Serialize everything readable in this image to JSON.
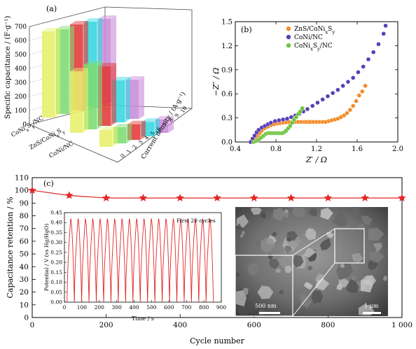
{
  "panels": {
    "a": "(a)",
    "b": "(b)",
    "c": "(c)"
  },
  "chart_data": [
    {
      "type": "bar",
      "panel": "(a)",
      "projection": "3d",
      "title": "",
      "ylabel": "Specific capacitance / (F·g⁻¹)",
      "xlabel": "Current density / (A·g⁻¹)",
      "ylim": [
        0,
        700
      ],
      "yticks": [
        0,
        100,
        200,
        300,
        400,
        500,
        600,
        700
      ],
      "categories": [
        "1",
        "2",
        "3",
        "4",
        "5",
        "6",
        "7",
        "8",
        "9",
        "10"
      ],
      "depth_labels": [
        "CoNi_xS_y/NC",
        "ZnS/CoNi_xS_y",
        "CoNi/NC"
      ],
      "series": [
        {
          "name": "CoNi_xS_y/NC",
          "values": [
            615,
            606,
            615,
            610,
            605,
            0,
            0,
            0,
            0,
            0
          ],
          "colors": [
            "#e8f06a",
            "#7ddc72",
            "#e23a3a",
            "#35d8e0",
            "#c98bd9"
          ]
        },
        {
          "name": "ZnS/CoNi_xS_y",
          "values": [
            440,
            465,
            425,
            300,
            280,
            0,
            0,
            0,
            0,
            0
          ],
          "colors": [
            "#e8f06a",
            "#7ddc72",
            "#e23a3a",
            "#35d8e0",
            "#c98bd9"
          ]
        },
        {
          "name": "CoNi/NC",
          "values": [
            75,
            72,
            70,
            65,
            60,
            0,
            0,
            0,
            0,
            0
          ],
          "colors": [
            "#e8f06a",
            "#7ddc72",
            "#e23a3a",
            "#35d8e0",
            "#c98bd9"
          ]
        }
      ],
      "depth_tick_labels": [
        "CoNi_xS_y/NC",
        "ZnS/CoNi_xS_y",
        "CoNi/NC"
      ],
      "x_tick_labels": [
        "0",
        "1",
        "2",
        "3",
        "4",
        "5",
        "6",
        "7",
        "8",
        "9",
        "10"
      ]
    },
    {
      "type": "scatter",
      "panel": "(b)",
      "title": "",
      "xlabel": "Z′ / Ω",
      "ylabel": "−Z″ / Ω",
      "xlim": [
        0.4,
        2.0
      ],
      "ylim": [
        0.0,
        1.5
      ],
      "xticks": [
        "0.4",
        "0.8",
        "1.2",
        "1.6",
        "2.0"
      ],
      "yticks": [
        "0.0",
        "0.3",
        "0.6",
        "0.9",
        "1.2",
        "1.5"
      ],
      "legend_position": "top-right",
      "series": [
        {
          "name": "ZnS/CoNi_xS_y",
          "color": "#f28c28",
          "x": [
            0.56,
            0.58,
            0.6,
            0.62,
            0.64,
            0.66,
            0.69,
            0.72,
            0.75,
            0.78,
            0.81,
            0.84,
            0.87,
            0.9,
            0.93,
            0.96,
            0.99,
            1.02,
            1.05,
            1.08,
            1.1,
            1.12,
            1.14,
            1.17,
            1.2,
            1.23,
            1.26,
            1.29,
            1.32,
            1.35,
            1.38,
            1.41,
            1.44,
            1.47,
            1.5,
            1.53,
            1.56,
            1.59,
            1.62,
            1.65,
            1.68
          ],
          "y": [
            0.0,
            0.02,
            0.05,
            0.08,
            0.11,
            0.14,
            0.17,
            0.19,
            0.21,
            0.22,
            0.23,
            0.235,
            0.24,
            0.245,
            0.25,
            0.25,
            0.25,
            0.25,
            0.25,
            0.25,
            0.25,
            0.25,
            0.25,
            0.25,
            0.25,
            0.25,
            0.25,
            0.25,
            0.26,
            0.27,
            0.28,
            0.29,
            0.31,
            0.33,
            0.36,
            0.4,
            0.45,
            0.51,
            0.58,
            0.63,
            0.7
          ]
        },
        {
          "name": "CoNi/NC",
          "color": "#5b3fb8",
          "x": [
            0.55,
            0.57,
            0.59,
            0.61,
            0.63,
            0.66,
            0.69,
            0.72,
            0.75,
            0.79,
            0.83,
            0.87,
            0.91,
            0.95,
            0.99,
            1.03,
            1.07,
            1.11,
            1.16,
            1.21,
            1.26,
            1.31,
            1.36,
            1.41,
            1.46,
            1.51,
            1.56,
            1.61,
            1.66,
            1.71,
            1.76,
            1.81,
            1.86,
            1.88
          ],
          "y": [
            0.0,
            0.04,
            0.08,
            0.12,
            0.15,
            0.18,
            0.2,
            0.22,
            0.24,
            0.26,
            0.27,
            0.28,
            0.29,
            0.31,
            0.33,
            0.35,
            0.38,
            0.41,
            0.45,
            0.49,
            0.53,
            0.57,
            0.61,
            0.65,
            0.7,
            0.75,
            0.8,
            0.87,
            0.94,
            1.03,
            1.12,
            1.22,
            1.35,
            1.45
          ]
        },
        {
          "name": "CoNi_xS_y/NC",
          "color": "#6dc43c",
          "x": [
            0.58,
            0.6,
            0.62,
            0.64,
            0.66,
            0.68,
            0.7,
            0.72,
            0.74,
            0.76,
            0.78,
            0.8,
            0.82,
            0.84,
            0.86,
            0.88,
            0.9,
            0.92,
            0.94,
            0.96,
            0.98,
            1.0,
            1.02,
            1.04,
            1.06
          ],
          "y": [
            0.0,
            0.01,
            0.02,
            0.04,
            0.06,
            0.08,
            0.1,
            0.11,
            0.11,
            0.11,
            0.11,
            0.11,
            0.11,
            0.11,
            0.11,
            0.12,
            0.14,
            0.17,
            0.2,
            0.24,
            0.28,
            0.31,
            0.35,
            0.38,
            0.42
          ]
        }
      ]
    },
    {
      "type": "line",
      "panel": "(c)",
      "title": "",
      "xlabel": "Cycle number",
      "ylabel": "Capacitance retention / %",
      "xlim": [
        0,
        1000
      ],
      "ylim": [
        0,
        110
      ],
      "xticks": [
        "0",
        "200",
        "400",
        "600",
        "800",
        "1 000"
      ],
      "yticks": [
        "0",
        "10",
        "20",
        "30",
        "40",
        "50",
        "60",
        "70",
        "80",
        "90",
        "100",
        "110"
      ],
      "series": [
        {
          "name": "",
          "color": "#e32626",
          "marker": "star",
          "x": [
            0,
            100,
            200,
            300,
            400,
            500,
            600,
            700,
            800,
            900,
            1000
          ],
          "y": [
            100,
            96,
            94,
            94,
            94,
            94,
            94,
            94,
            94,
            94,
            94
          ]
        }
      ]
    },
    {
      "type": "line",
      "panel": "(c) inset",
      "title": "First 20 cycles",
      "xlabel": "Time / s",
      "ylabel": "Potential / V (vs Hg/HgO)",
      "xlim": [
        0,
        900
      ],
      "ylim": [
        0,
        0.45
      ],
      "xticks": [
        "0",
        "100",
        "200",
        "300",
        "400",
        "500",
        "600",
        "700",
        "800",
        "900"
      ],
      "yticks": [
        "0.00",
        "0.05",
        "0.10",
        "0.15",
        "0.20",
        "0.25",
        "0.30",
        "0.35",
        "0.40",
        "0.45"
      ],
      "series": [
        {
          "name": "",
          "color": "#e32626",
          "cycles": 20,
          "period_s": 42,
          "vmin": 0.0,
          "vmax": 0.42
        }
      ]
    }
  ],
  "sem_image": {
    "scalebar_left": "500 nm",
    "scalebar_right": "1 μm"
  }
}
